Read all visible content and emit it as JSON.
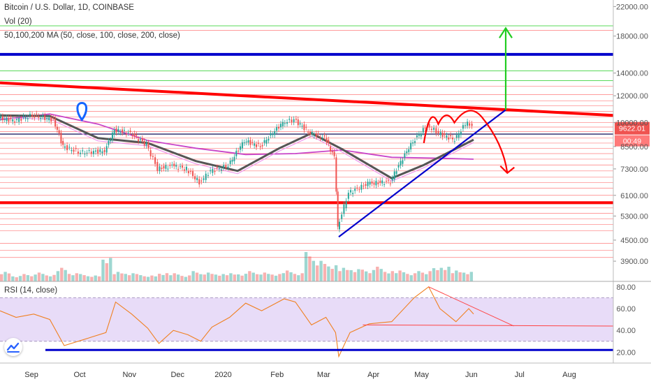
{
  "legend": {
    "symbol": "Bitcoin / U.S. Dollar, 1D, COINBASE",
    "volume": "Vol (20)",
    "ma": "50,100,200 MA (50, close, 100, close, 200, close)",
    "rsi": "RSI (14, close)"
  },
  "colors": {
    "candle_up": "#26a69a",
    "candle_down": "#ef5350",
    "ma_dark": "#555555",
    "ma_magenta": "#c844c8",
    "rsi_line": "#f08020",
    "rsi_band": "#e8dcf8",
    "drawing_red": "#ff0000",
    "drawing_blue": "#0000cc",
    "drawing_green": "#22cc22",
    "price_badge": "#ef5350"
  },
  "price_badge": {
    "price": "9622.01",
    "timer": "00:49"
  },
  "chart_data": [
    {
      "type": "candlestick",
      "title": "Bitcoin / U.S. Dollar, 1D, COINBASE",
      "y_scale": "log",
      "ylim": [
        3400,
        23000
      ],
      "y_ticks": [
        "22000.00",
        "18000.00",
        "14000.00",
        "12000.00",
        "10000.00",
        "8500.00",
        "7300.00",
        "6100.00",
        "5300.00",
        "4500.00",
        "3900.00"
      ],
      "x_ticks": [
        "Sep",
        "Oct",
        "Nov",
        "Dec",
        "2020",
        "Feb",
        "Mar",
        "Apr",
        "May",
        "Jun",
        "Jul",
        "Aug"
      ],
      "x_range": [
        "2019-08-15",
        "2020-08-31"
      ],
      "last_price": 9622.01,
      "series": [
        {
          "kind": "price_close",
          "points": [
            [
              "2019-08-15",
              10300
            ],
            [
              "2019-08-25",
              10150
            ],
            [
              "2019-09-05",
              10500
            ],
            [
              "2019-09-18",
              10200
            ],
            [
              "2019-09-24",
              8500
            ],
            [
              "2019-10-05",
              8150
            ],
            [
              "2019-10-20",
              8250
            ],
            [
              "2019-10-26",
              9500
            ],
            [
              "2019-11-05",
              9300
            ],
            [
              "2019-11-15",
              8600
            ],
            [
              "2019-11-22",
              7300
            ],
            [
              "2019-12-01",
              7450
            ],
            [
              "2019-12-10",
              7300
            ],
            [
              "2019-12-18",
              6650
            ],
            [
              "2019-12-25",
              7200
            ],
            [
              "2020-01-05",
              7450
            ],
            [
              "2020-01-15",
              8850
            ],
            [
              "2020-01-25",
              8500
            ],
            [
              "2020-02-08",
              10000
            ],
            [
              "2020-02-15",
              10200
            ],
            [
              "2020-02-25",
              9300
            ],
            [
              "2020-03-05",
              9000
            ],
            [
              "2020-03-11",
              7900
            ],
            [
              "2020-03-13",
              4850
            ],
            [
              "2020-03-20",
              6200
            ],
            [
              "2020-04-01",
              6600
            ],
            [
              "2020-04-15",
              6700
            ],
            [
              "2020-04-29",
              8800
            ],
            [
              "2020-05-08",
              9800
            ],
            [
              "2020-05-15",
              9300
            ],
            [
              "2020-05-25",
              8900
            ],
            [
              "2020-06-02",
              10100
            ],
            [
              "2020-06-05",
              9622
            ]
          ]
        },
        {
          "kind": "ma_dark",
          "points": [
            [
              "2019-08-15",
              10500
            ],
            [
              "2019-09-15",
              10450
            ],
            [
              "2019-10-15",
              9000
            ],
            [
              "2019-11-15",
              8700
            ],
            [
              "2019-12-15",
              7700
            ],
            [
              "2020-01-10",
              7200
            ],
            [
              "2020-02-05",
              8400
            ],
            [
              "2020-02-25",
              9300
            ],
            [
              "2020-03-15",
              8350
            ],
            [
              "2020-04-15",
              6850
            ],
            [
              "2020-05-05",
              7500
            ],
            [
              "2020-06-05",
              8900
            ]
          ]
        },
        {
          "kind": "ma_magenta",
          "points": [
            [
              "2019-08-15",
              10200
            ],
            [
              "2019-09-15",
              10600
            ],
            [
              "2019-10-15",
              9900
            ],
            [
              "2019-11-15",
              8850
            ],
            [
              "2019-12-15",
              8400
            ],
            [
              "2020-01-15",
              8050
            ],
            [
              "2020-02-15",
              8100
            ],
            [
              "2020-03-15",
              8300
            ],
            [
              "2020-04-15",
              7900
            ],
            [
              "2020-05-15",
              7850
            ],
            [
              "2020-06-05",
              7800
            ]
          ]
        }
      ],
      "volume": {
        "title": "Vol (20)",
        "relative": [
          0.35,
          0.2,
          0.25,
          0.3,
          0.22,
          0.5,
          0.3,
          0.25,
          0.2,
          0.8,
          0.35,
          0.3,
          0.25,
          0.2,
          0.28,
          0.3,
          0.22,
          0.35,
          0.3,
          0.25,
          0.3,
          0.28,
          0.35,
          0.3,
          0.25,
          0.4,
          0.3,
          1.0,
          0.7,
          0.55,
          0.5,
          0.45,
          0.4,
          0.5,
          0.35,
          0.4,
          0.3,
          0.35,
          0.45,
          0.5,
          0.4,
          0.35
        ]
      },
      "annotations": {
        "resistance_line": {
          "from": [
            "2019-08-15",
            13100
          ],
          "to": [
            "2020-08-31",
            10500
          ]
        },
        "blue_levels": [
          15900,
          9250
        ],
        "support_level": 5800,
        "rising_trendline": {
          "from": [
            "2020-03-13",
            4600
          ],
          "to": [
            "2020-06-25",
            10900
          ]
        },
        "green_target_arrow": {
          "date": "2020-06-25",
          "from": 10900,
          "to": 19000
        },
        "red_down_arrow": {
          "date": "2020-06-26",
          "from": 10600,
          "to": 7100
        },
        "map_marker": {
          "date": "2019-10-05",
          "price": 11000
        }
      }
    },
    {
      "type": "line",
      "title": "RSI (14, close)",
      "ylim": [
        10,
        85
      ],
      "y_ticks": [
        "80.00",
        "60.00",
        "40.00",
        "20.00"
      ],
      "bands": [
        30,
        70
      ],
      "points": [
        [
          "2019-08-15",
          58
        ],
        [
          "2019-08-25",
          52
        ],
        [
          "2019-09-05",
          55
        ],
        [
          "2019-09-15",
          50
        ],
        [
          "2019-09-24",
          26
        ],
        [
          "2019-10-05",
          31
        ],
        [
          "2019-10-20",
          38
        ],
        [
          "2019-10-26",
          66
        ],
        [
          "2019-11-05",
          55
        ],
        [
          "2019-11-15",
          42
        ],
        [
          "2019-11-22",
          28
        ],
        [
          "2019-12-01",
          40
        ],
        [
          "2019-12-10",
          36
        ],
        [
          "2019-12-18",
          30
        ],
        [
          "2019-12-25",
          43
        ],
        [
          "2020-01-05",
          52
        ],
        [
          "2020-01-15",
          65
        ],
        [
          "2020-01-25",
          58
        ],
        [
          "2020-02-08",
          69
        ],
        [
          "2020-02-15",
          66
        ],
        [
          "2020-02-25",
          45
        ],
        [
          "2020-03-05",
          52
        ],
        [
          "2020-03-11",
          38
        ],
        [
          "2020-03-13",
          16
        ],
        [
          "2020-03-20",
          38
        ],
        [
          "2020-04-01",
          46
        ],
        [
          "2020-04-15",
          48
        ],
        [
          "2020-04-29",
          70
        ],
        [
          "2020-05-08",
          80
        ],
        [
          "2020-05-15",
          60
        ],
        [
          "2020-05-25",
          48
        ],
        [
          "2020-06-02",
          60
        ],
        [
          "2020-06-05",
          55
        ]
      ],
      "annotations": {
        "descending_line": {
          "from": [
            "2020-05-08",
            80
          ],
          "to": [
            "2020-06-30",
            44
          ]
        },
        "flat_line": {
          "from": [
            "2020-03-28",
            45
          ],
          "to": [
            "2020-08-31",
            44
          ]
        },
        "blue_level": 22
      }
    }
  ]
}
